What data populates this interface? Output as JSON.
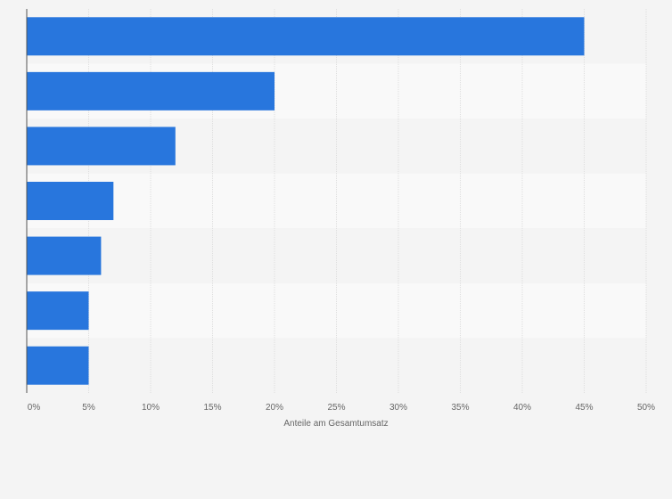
{
  "chart_data": {
    "type": "bar",
    "orientation": "horizontal",
    "categories": [
      "",
      "",
      "",
      "",
      "",
      "",
      ""
    ],
    "values": [
      45,
      20,
      12,
      7,
      6,
      5,
      5
    ],
    "xlabel": "Anteile am Gesamtumsatz",
    "ylabel": "",
    "xlim": [
      0,
      50
    ],
    "x_ticks": [
      0,
      5,
      10,
      15,
      20,
      25,
      30,
      35,
      40,
      45,
      50
    ],
    "x_tick_labels": [
      "0%",
      "5%",
      "10%",
      "15%",
      "20%",
      "25%",
      "30%",
      "35%",
      "40%",
      "45%",
      "50%"
    ],
    "grid": true,
    "legend": "none",
    "colors": {
      "bar": "#2876dd",
      "band_light": "#f9f9f9",
      "band_dark": "#f2f2f2",
      "grid": "#dedede",
      "axis": "#555555",
      "text": "#666666",
      "background": "#f4f4f4"
    }
  }
}
